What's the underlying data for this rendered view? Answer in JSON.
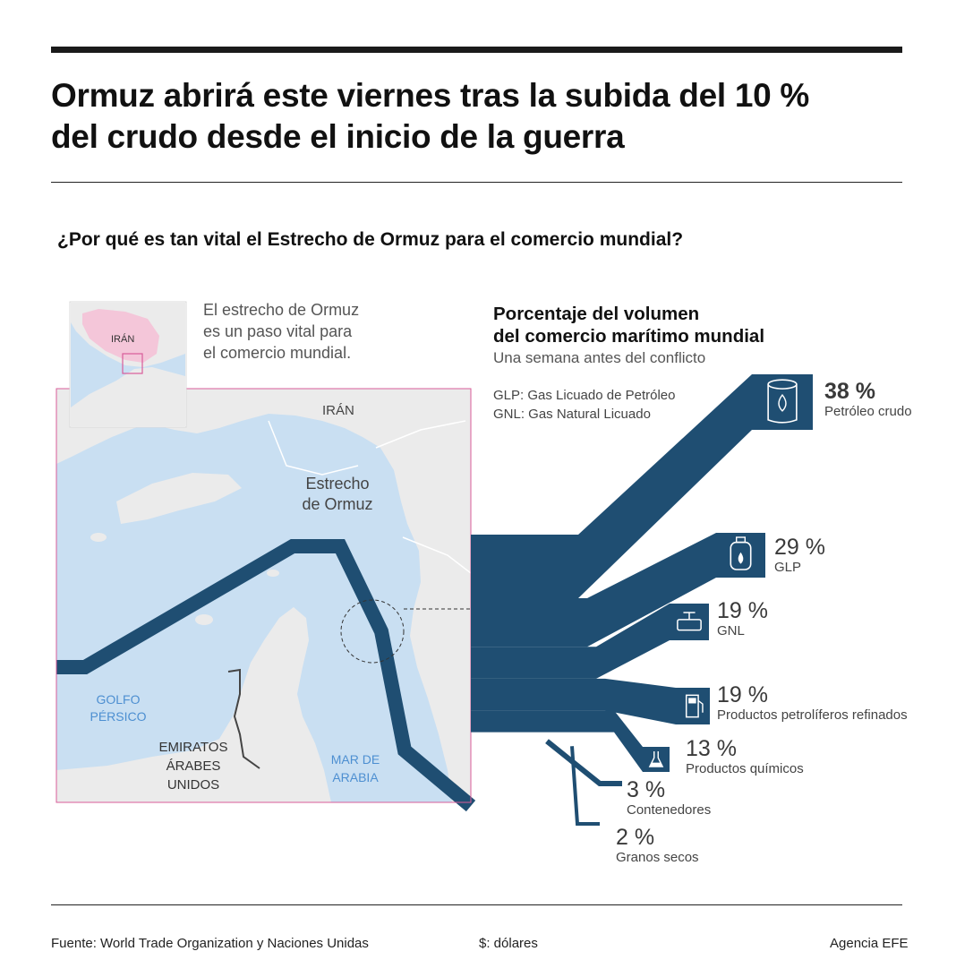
{
  "header": {
    "title_line1": "Ormuz abrirá este viernes tras la subida del 10 %",
    "title_line2": "del crudo desde el inicio de la guerra"
  },
  "subtitle": "¿Por qué es tan vital el Estrecho de Ormuz para el comercio mundial?",
  "intro": {
    "line1": "El estrecho de Ormuz",
    "line2": "es un paso vital para",
    "line3": "el comercio mundial."
  },
  "map": {
    "inset_label": "IRÁN",
    "label_iran": "IRÁN",
    "strait_line1": "Estrecho",
    "strait_line2": "de Ormuz",
    "gulf_line1": "GOLFO",
    "gulf_line2": "PÉRSICO",
    "uae_line1": "EMIRATOS",
    "uae_line2": "ÁRABES",
    "uae_line3": "UNIDOS",
    "sea_line1": "MAR DE",
    "sea_line2": "ARABIA",
    "colors": {
      "water": "#c9dff2",
      "land": "#ebebeb",
      "route": "#1f4e72",
      "iran_inset": "#f4c6d9",
      "frame": "#d85c9a"
    }
  },
  "panel": {
    "title_line1": "Porcentaje del volumen",
    "title_line2": "del comercio marítimo mundial",
    "subtitle": "Una semana antes del conflicto",
    "abbr_glp": "GLP: Gas Licuado de Petróleo",
    "abbr_gnl": "GNL: Gas Natural Licuado"
  },
  "chart_data": {
    "type": "sankey",
    "title": "Porcentaje del volumen del comercio marítimo mundial",
    "subtitle": "Una semana antes del conflicto",
    "unit": "%",
    "color": "#1f4e72",
    "items": [
      {
        "label": "Petróleo crudo",
        "value": 38,
        "value_text": "38 %",
        "icon": "oil-barrel-icon"
      },
      {
        "label": "GLP",
        "value": 29,
        "value_text": "29 %",
        "icon": "gas-cylinder-icon"
      },
      {
        "label": "GNL",
        "value": 19,
        "value_text": "19 %",
        "icon": "gas-valve-icon"
      },
      {
        "label": "Productos petrolíferos refinados",
        "value": 19,
        "value_text": "19 %",
        "icon": "fuel-pump-icon"
      },
      {
        "label": "Productos químicos",
        "value": 13,
        "value_text": "13 %",
        "icon": "flask-icon"
      },
      {
        "label": "Contenedores",
        "value": 3,
        "value_text": "3 %",
        "icon": ""
      },
      {
        "label": "Granos secos",
        "value": 2,
        "value_text": "2 %",
        "icon": ""
      }
    ]
  },
  "footer": {
    "source": "Fuente: World Trade Organization y Naciones Unidas",
    "currency": "$: dólares",
    "agency": "Agencia EFE"
  }
}
